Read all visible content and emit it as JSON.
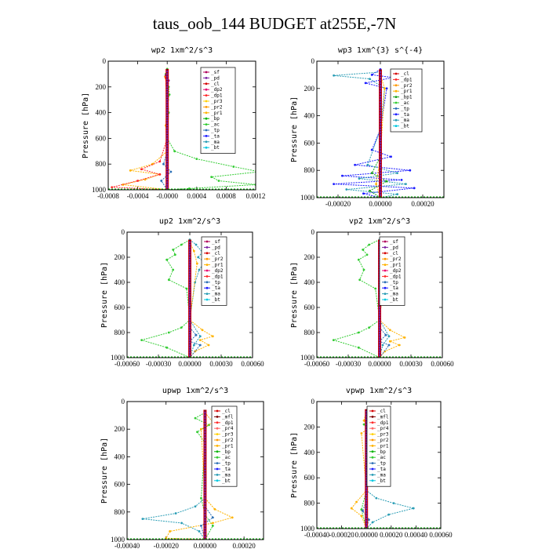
{
  "page": {
    "title": "taus_oob_144  BUDGET at255E,-7N"
  },
  "colors": {
    "cl": "#d40000",
    "mfl": "#800000",
    "pd": "#7b1fa2",
    "sf": "#b0005a",
    "dp1": "#ff2a2a",
    "dp2": "#e8006e",
    "pr1": "#ffb300",
    "pr2": "#ff9900",
    "pr3": "#ffd000",
    "pr4": "#ff6666",
    "bp": "#00b300",
    "bp1": "#1aa31a",
    "ac": "#33cc33",
    "tp": "#2c6fb5",
    "ta": "#1a1aff",
    "ma": "#2a9db5",
    "bt": "#00c8e0",
    "dark": "#5b0a2a"
  },
  "chart_data": [
    {
      "id": "wp2",
      "type": "line",
      "title": "wp2  1xm^2/s^3",
      "ylabel": "Pressure [hPa]",
      "ylim": [
        1000,
        0
      ],
      "xlim": [
        -0.0008,
        0.0012
      ],
      "xticks": [
        -0.0008,
        -0.0004,
        0.0,
        0.0004,
        0.0008,
        0.0012
      ],
      "xtick_labels": [
        "-0.0008",
        "-0.0004",
        "-0.0000",
        "0.0004",
        "0.0008",
        "0.0012"
      ],
      "yticks": [
        0,
        200,
        400,
        600,
        800,
        1000
      ],
      "legend": [
        "_sf",
        "_pd",
        "_cl",
        "_dp2",
        "_dp1",
        "_pr3",
        "_pr2",
        "_pr1",
        "_bp",
        "_ac",
        "_tp",
        "_ta",
        "_ma",
        "_bt"
      ],
      "series": [
        {
          "name": "_ac",
          "color": "#33cc33",
          "x": [
            0.0,
            -2e-05,
            -1e-05,
            2e-05,
            3e-05,
            1e-05,
            2e-05,
            0.0,
            0.0001,
            0.0004,
            0.0009,
            0.00125,
            0.0006,
            0.0007,
            0.0012,
            0.0003,
            0.0
          ],
          "y": [
            60,
            100,
            140,
            200,
            260,
            300,
            400,
            600,
            700,
            760,
            820,
            860,
            900,
            930,
            960,
            990,
            1000
          ]
        },
        {
          "name": "_pr1",
          "color": "#ffb300",
          "x": [
            0.0,
            -3e-05,
            -1e-05,
            0.0,
            -2e-05,
            0.0,
            -0.0002,
            -0.0005,
            -0.0001,
            -0.0003,
            -0.0006,
            0.0
          ],
          "y": [
            80,
            120,
            180,
            300,
            500,
            700,
            800,
            850,
            880,
            920,
            960,
            1000
          ]
        },
        {
          "name": "_dp1",
          "color": "#ff2a2a",
          "x": [
            0.0,
            -2e-05,
            0.0,
            -0.0001,
            -0.00035,
            -0.0001,
            -0.0004,
            -0.00075,
            0.0
          ],
          "y": [
            90,
            130,
            600,
            780,
            840,
            880,
            930,
            980,
            1000
          ]
        },
        {
          "name": "_tp",
          "color": "#2c6fb5",
          "x": [
            0.0,
            0.0,
            -5e-05,
            5e-05,
            -8e-05,
            0.0
          ],
          "y": [
            100,
            700,
            800,
            860,
            930,
            1000
          ]
        },
        {
          "name": "_pd",
          "color": "#7b1fa2",
          "x": [
            0.0,
            -2e-05,
            2e-05,
            0.0,
            0.0
          ],
          "y": [
            80,
            110,
            150,
            300,
            1000
          ]
        }
      ]
    },
    {
      "id": "wp3",
      "type": "line",
      "title": "wp3  1xm^{3} s^{-4}",
      "ylabel": "Pressure [hPa]",
      "ylim": [
        1000,
        0
      ],
      "xlim": [
        -0.0003,
        0.0003
      ],
      "xticks": [
        -0.0002,
        0.0,
        0.0002
      ],
      "xtick_labels": [
        "-0.00020",
        "0.00000",
        "0.00020"
      ],
      "yticks": [
        0,
        200,
        400,
        600,
        800,
        1000
      ],
      "legend": [
        "_cl",
        "_dp1",
        "_pr2",
        "_pr1",
        "_bp1",
        "_ac",
        "_tp",
        "_ta",
        "_ma",
        "_bt"
      ],
      "series": [
        {
          "name": "_ta",
          "color": "#1a1aff",
          "x": [
            0.0,
            -4e-05,
            6e-05,
            -7e-05,
            3e-05,
            0.0,
            -4e-05,
            5e-05,
            -0.00012,
            0.00014,
            -0.00018,
            0.0001,
            -0.00022,
            0.00016,
            -8e-05,
            0.0
          ],
          "y": [
            60,
            100,
            120,
            160,
            200,
            500,
            650,
            700,
            760,
            800,
            840,
            870,
            900,
            930,
            970,
            1000
          ]
        },
        {
          "name": "_ma",
          "color": "#2a9db5",
          "x": [
            0.0,
            -0.00022,
            -5e-05,
            2e-05,
            0.0,
            -6e-05,
            8e-05,
            -0.0001,
            0.00012,
            -0.00016,
            8e-05,
            0.0
          ],
          "y": [
            80,
            105,
            130,
            200,
            500,
            760,
            820,
            860,
            900,
            940,
            975,
            1000
          ]
        },
        {
          "name": "_bp1",
          "color": "#1aa31a",
          "x": [
            0.0,
            0.0,
            -4e-05,
            3e-05,
            -5e-05,
            0.0
          ],
          "y": [
            100,
            700,
            820,
            880,
            950,
            1000
          ]
        },
        {
          "name": "_pr1",
          "color": "#ffb300",
          "x": [
            0.0,
            2e-05,
            0.0,
            -2e-05,
            0.0
          ],
          "y": [
            100,
            200,
            700,
            900,
            1000
          ]
        }
      ]
    },
    {
      "id": "up2",
      "type": "line",
      "title": "up2  1xm^2/s^3",
      "ylabel": "Pressure [hPa]",
      "ylim": [
        1000,
        0
      ],
      "xlim": [
        -0.0006,
        0.0006
      ],
      "xticks": [
        -0.0006,
        -0.0003,
        0.0,
        0.0003,
        0.0006
      ],
      "xtick_labels": [
        "-0.00060",
        "-0.00030",
        "0.00000",
        "0.00030",
        "0.00060"
      ],
      "yticks": [
        0,
        200,
        400,
        600,
        800,
        1000
      ],
      "legend": [
        "_sf",
        "_pd",
        "_cl",
        "_pr2",
        "_pr1",
        "_dp2",
        "_dp1",
        "_tp",
        "_ta",
        "_ma",
        "_bt"
      ],
      "series": [
        {
          "name": "_ac",
          "color": "#33cc33",
          "x": [
            0.0,
            -8e-05,
            -0.00016,
            -0.00014,
            -0.00022,
            -0.00016,
            -0.0002,
            -3e-05,
            0.0,
            -8e-05,
            -0.0002,
            -0.00046,
            -0.00022,
            0.0
          ],
          "y": [
            60,
            100,
            140,
            180,
            220,
            300,
            380,
            450,
            700,
            760,
            800,
            860,
            920,
            1000
          ]
        },
        {
          "name": "_ma",
          "color": "#2a9db5",
          "x": [
            0.0,
            6e-05,
            0.00012,
            8e-05,
            0.00014,
            9e-05,
            5e-05,
            0.0,
            0.0001,
            4e-05,
            0.0
          ],
          "y": [
            60,
            100,
            160,
            200,
            240,
            300,
            400,
            700,
            830,
            900,
            1000
          ]
        },
        {
          "name": "_pr1",
          "color": "#ffb300",
          "x": [
            0.0,
            4e-05,
            7e-05,
            0.0,
            0.00012,
            0.00022,
            0.0001,
            0.00018,
            5e-05,
            0.0
          ],
          "y": [
            80,
            150,
            250,
            700,
            780,
            830,
            860,
            900,
            950,
            1000
          ]
        },
        {
          "name": "_tp",
          "color": "#2c6fb5",
          "x": [
            0.0,
            0.0,
            6e-05,
            0.0,
            0.0001,
            0.0
          ],
          "y": [
            100,
            760,
            820,
            870,
            900,
            1000
          ]
        }
      ]
    },
    {
      "id": "vp2",
      "type": "line",
      "title": "vp2  1xm^2/s^3",
      "ylabel": "Pressure [hPa]",
      "ylim": [
        1000,
        0
      ],
      "xlim": [
        -0.0006,
        0.0006
      ],
      "xticks": [
        -0.0006,
        -0.0003,
        0.0,
        0.0003,
        0.0006
      ],
      "xtick_labels": [
        "-0.00060",
        "-0.00030",
        "0.00000",
        "0.00030",
        "0.00060"
      ],
      "yticks": [
        0,
        200,
        400,
        600,
        800,
        1000
      ],
      "legend": [
        "_sf",
        "_pd",
        "_cl",
        "_pr2",
        "_pr1",
        "_dp2",
        "_dp1",
        "_tp",
        "_ta",
        "_ma",
        "_bt"
      ],
      "series": [
        {
          "name": "_ac",
          "color": "#33cc33",
          "x": [
            0.0,
            -0.0001,
            -0.00016,
            -0.00012,
            -0.0002,
            -0.00015,
            -0.00019,
            -4e-05,
            0.0,
            -0.0001,
            -0.0002,
            -0.00044,
            -0.0002,
            0.0
          ],
          "y": [
            60,
            100,
            140,
            180,
            220,
            300,
            380,
            450,
            700,
            760,
            800,
            860,
            920,
            1000
          ]
        },
        {
          "name": "_ma",
          "color": "#2a9db5",
          "x": [
            0.0,
            5e-05,
            0.0001,
            7e-05,
            0.00012,
            8e-05,
            4e-05,
            0.0,
            9e-05,
            3e-05,
            0.0
          ],
          "y": [
            60,
            100,
            160,
            200,
            240,
            300,
            400,
            700,
            830,
            900,
            1000
          ]
        },
        {
          "name": "_pr1",
          "color": "#ffb300",
          "x": [
            0.0,
            3e-05,
            6e-05,
            0.0,
            0.0001,
            0.00024,
            0.0001,
            0.00019,
            5e-05,
            0.0
          ],
          "y": [
            80,
            150,
            250,
            700,
            780,
            840,
            870,
            900,
            950,
            1000
          ]
        },
        {
          "name": "_tp",
          "color": "#2c6fb5",
          "x": [
            0.0,
            0.0,
            6e-05,
            0.0,
            9e-05,
            0.0
          ],
          "y": [
            100,
            760,
            820,
            870,
            900,
            1000
          ]
        }
      ]
    },
    {
      "id": "upwp",
      "type": "line",
      "title": "upwp  1xm^2/s^3",
      "ylabel": "Pressure [hPa]",
      "ylim": [
        1000,
        0
      ],
      "xlim": [
        -0.0004,
        0.0003
      ],
      "xticks": [
        -0.0004,
        -0.0002,
        0.0,
        0.0002
      ],
      "xtick_labels": [
        "-0.00040",
        "-0.00020",
        "0.00000",
        "0.00020"
      ],
      "yticks": [
        0,
        200,
        400,
        600,
        800,
        1000
      ],
      "legend": [
        "_cl",
        "_mfl",
        "_dp1",
        "_pr4",
        "_pr3",
        "_pr2",
        "_pr1",
        "_bp",
        "_ac",
        "_tp",
        "_ta",
        "_ma",
        "_bt"
      ],
      "series": [
        {
          "name": "_ma",
          "color": "#2a9db5",
          "x": [
            0.0,
            0.0,
            -5e-05,
            -0.00015,
            -0.00032,
            -0.00012,
            -3e-05,
            0.0
          ],
          "y": [
            80,
            700,
            760,
            810,
            850,
            880,
            940,
            1000
          ]
        },
        {
          "name": "_ac",
          "color": "#33cc33",
          "x": [
            0.0,
            -5e-05,
            2e-05,
            -4e-05,
            0.0,
            -2e-05,
            0.0,
            4e-05,
            0.0
          ],
          "y": [
            80,
            120,
            170,
            220,
            300,
            700,
            820,
            900,
            1000
          ]
        },
        {
          "name": "_pr1",
          "color": "#ffb300",
          "x": [
            0.0,
            4e-05,
            -2e-05,
            0.0,
            5e-05,
            0.00014,
            4e-05,
            -0.00018,
            -0.0002,
            0.0
          ],
          "y": [
            80,
            150,
            200,
            700,
            780,
            840,
            880,
            940,
            990,
            1000
          ]
        },
        {
          "name": "_tp",
          "color": "#2c6fb5",
          "x": [
            0.0,
            0.0,
            4e-05,
            -2e-05,
            0.0
          ],
          "y": [
            100,
            760,
            840,
            900,
            1000
          ]
        }
      ]
    },
    {
      "id": "vpwp",
      "type": "line",
      "title": "vpwp  1xm^2/s^3",
      "ylabel": "Pressure [hPa]",
      "ylim": [
        1000,
        0
      ],
      "xlim": [
        -0.0004,
        0.0006
      ],
      "xticks": [
        -0.0004,
        -0.0002,
        0.0,
        0.0002,
        0.0004,
        0.0006
      ],
      "xtick_labels": [
        "-0.00040",
        "-0.00020",
        "0.00000",
        "0.00020",
        "0.00040",
        "0.00060"
      ],
      "yticks": [
        0,
        200,
        400,
        600,
        800,
        1000
      ],
      "legend": [
        "_cl",
        "_mfl",
        "_dp1",
        "_pr4",
        "_pr3",
        "_pr2",
        "_pr1",
        "_bp",
        "_ac",
        "_tp",
        "_ta",
        "_ma",
        "_bt"
      ],
      "series": [
        {
          "name": "_ma",
          "color": "#2a9db5",
          "x": [
            0.0,
            0.0,
            8e-05,
            0.00022,
            0.00038,
            0.00018,
            5e-05,
            0.0
          ],
          "y": [
            80,
            700,
            760,
            800,
            840,
            890,
            950,
            1000
          ]
        },
        {
          "name": "_pr1",
          "color": "#ffb300",
          "x": [
            0.0,
            -2e-05,
            3e-05,
            -4e-05,
            0.0,
            -8e-05,
            -0.00012,
            -4e-05,
            0.0
          ],
          "y": [
            80,
            150,
            200,
            250,
            700,
            790,
            840,
            900,
            1000
          ]
        },
        {
          "name": "_ac",
          "color": "#33cc33",
          "x": [
            0.0,
            3e-05,
            -2e-05,
            4e-05,
            0.0,
            -4e-05,
            0.0
          ],
          "y": [
            80,
            130,
            180,
            250,
            700,
            850,
            1000
          ]
        },
        {
          "name": "_tp",
          "color": "#2c6fb5",
          "x": [
            0.0,
            0.0,
            -3e-05,
            2e-05,
            0.0
          ],
          "y": [
            100,
            780,
            860,
            930,
            1000
          ]
        }
      ]
    }
  ]
}
